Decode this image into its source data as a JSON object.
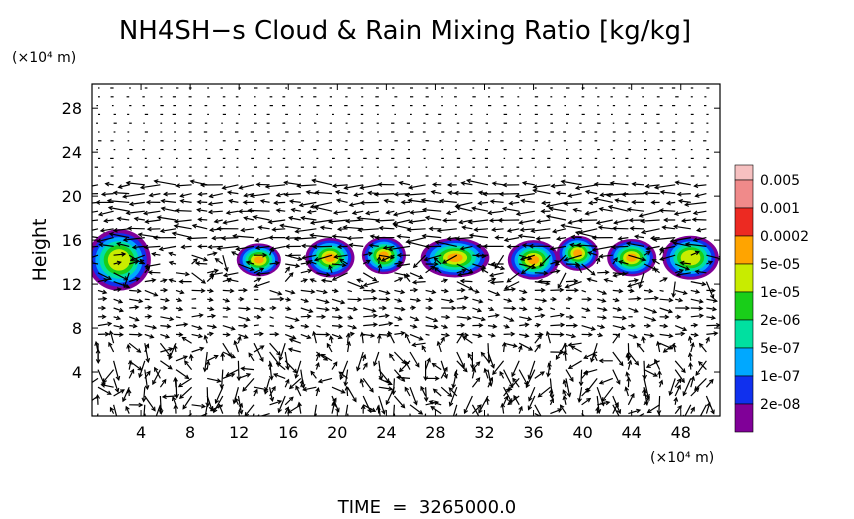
{
  "chart_data": {
    "type": "heatmap",
    "title": "NH4SH−s Cloud & Rain Mixing Ratio [kg/kg]",
    "xlabel": "",
    "ylabel": "Height",
    "x_unit": "(×10⁴ m)",
    "y_unit": "(×10⁴ m)",
    "x_ticks": [
      4,
      8,
      12,
      16,
      20,
      24,
      28,
      32,
      36,
      40,
      44,
      48
    ],
    "y_ticks": [
      4,
      8,
      12,
      16,
      20,
      24,
      28
    ],
    "xlim": [
      0,
      51.2
    ],
    "ylim": [
      0,
      30.2
    ],
    "footer": "TIME  =  3265000.0",
    "colorbar": {
      "labels": [
        "0.005",
        "0.001",
        "0.0002",
        "5e-05",
        "1e-05",
        "2e-06",
        "5e-07",
        "1e-07",
        "2e-08"
      ],
      "colors": [
        "#f08a8a",
        "#ec2a22",
        "#ffa400",
        "#c8ec00",
        "#19ce19",
        "#00e0a0",
        "#00a8ff",
        "#1030ee",
        "#800098"
      ]
    },
    "cloud_cells": [
      {
        "x": 2.2,
        "y": 14.2,
        "w": 5.2,
        "h": 5.6,
        "level": 3
      },
      {
        "x": 13.6,
        "y": 14.2,
        "w": 3.6,
        "h": 3.0,
        "level": 2
      },
      {
        "x": 19.4,
        "y": 14.4,
        "w": 4.0,
        "h": 3.6,
        "level": 2
      },
      {
        "x": 23.8,
        "y": 14.6,
        "w": 3.6,
        "h": 3.4,
        "level": 2
      },
      {
        "x": 29.6,
        "y": 14.4,
        "w": 5.6,
        "h": 3.6,
        "level": 2
      },
      {
        "x": 36.0,
        "y": 14.2,
        "w": 4.2,
        "h": 3.6,
        "level": 2
      },
      {
        "x": 39.6,
        "y": 14.8,
        "w": 3.4,
        "h": 3.2,
        "level": 2
      },
      {
        "x": 44.0,
        "y": 14.4,
        "w": 4.0,
        "h": 3.4,
        "level": 2
      },
      {
        "x": 48.8,
        "y": 14.4,
        "w": 4.6,
        "h": 4.0,
        "level": 3
      }
    ]
  }
}
